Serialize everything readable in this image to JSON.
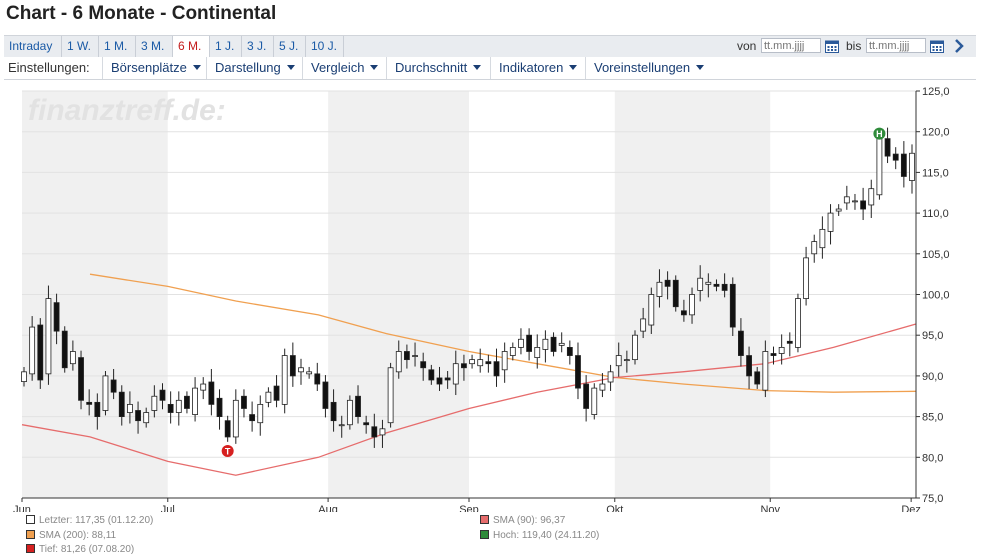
{
  "title": "Chart - 6 Monate - Continental",
  "ranges": [
    "Intraday",
    "1 W.",
    "1 M.",
    "3 M.",
    "6 M.",
    "1 J.",
    "3 J.",
    "5 J.",
    "10 J."
  ],
  "active_range": "6 M.",
  "date_filter": {
    "from_label": "von",
    "to_label": "bis",
    "from_placeholder": "tt.mm.jjjj",
    "to_placeholder": "tt.mm.jjjj"
  },
  "settings": {
    "label": "Einstellungen:",
    "menus": [
      "Börsenplätze",
      "Darstellung",
      "Vergleich",
      "Durchschnitt",
      "Indikatoren",
      "Voreinstellungen"
    ]
  },
  "watermark": "finanztreff.de:",
  "colors": {
    "sma200": "#f0a050",
    "sma90": "#e66c6c",
    "up": "#ffffff",
    "down": "#111111",
    "band": "#f0f0f0",
    "high_marker": "#2e8b3a",
    "low_marker": "#d62020"
  },
  "chart_data": {
    "type": "candlestick",
    "y_axis": {
      "min": 75,
      "max": 125,
      "ticks": [
        "125,0",
        "120,0",
        "115,0",
        "110,0",
        "105,0",
        "100,0",
        "95,0",
        "90,0",
        "85,0",
        "80,0",
        "75,0"
      ],
      "position": "right"
    },
    "x_axis": {
      "start": "2020-06-01",
      "end": "2020-12-02",
      "ticks": [
        {
          "label": "Jun",
          "date": "2020-06-01"
        },
        {
          "label": "Jul",
          "date": "2020-07-01"
        },
        {
          "label": "Aug",
          "date": "2020-08-03"
        },
        {
          "label": "Sep",
          "date": "2020-09-01"
        },
        {
          "label": "Okt",
          "date": "2020-10-01"
        },
        {
          "label": "Nov",
          "date": "2020-11-02"
        },
        {
          "label": "Dez",
          "date": "2020-12-01"
        }
      ]
    },
    "close": [
      90.5,
      96.0,
      89.5,
      99.5,
      95.5,
      91.0,
      93.0,
      87.0,
      86.5,
      85.0,
      90.0,
      88.0,
      85.0,
      86.5,
      84.5,
      85.5,
      87.5,
      87.0,
      85.5,
      87.0,
      86.0,
      88.5,
      89.0,
      86.5,
      85.0,
      82.5,
      87.0,
      86.0,
      84.5,
      86.5,
      88.0,
      87.0,
      92.5,
      90.0,
      91.0,
      90.5,
      89.0,
      86.0,
      84.5,
      84.0,
      87.0,
      85.0,
      84.0,
      82.5,
      83.5,
      91.0,
      93.0,
      92.0,
      92.5,
      91.0,
      89.5,
      89.0,
      89.5,
      91.5,
      91.0,
      92.0,
      92.0,
      91.5,
      90.0,
      93.0,
      93.5,
      94.5,
      93.0,
      93.5,
      94.5,
      93.0,
      94.0,
      92.5,
      88.5,
      86.0,
      88.5,
      89.0,
      90.5,
      92.5,
      92.0,
      95.0,
      97.0,
      100.0,
      101.5,
      101.0,
      98.5,
      97.5,
      100.0,
      102.0,
      101.5,
      101.0,
      100.5,
      96.0,
      92.5,
      90.0,
      89.0,
      93.0,
      92.5,
      93.5,
      94.0,
      99.5,
      104.5,
      106.5,
      108.0,
      110.0,
      110.5,
      112.0,
      111.5,
      110.5,
      113.0,
      119.4,
      117.0,
      116.5,
      114.5,
      117.35
    ],
    "high": 119.4,
    "low": 81.26,
    "sma200": [
      {
        "date": "2020-06-15",
        "v": 102.5
      },
      {
        "date": "2020-07-01",
        "v": 101.0
      },
      {
        "date": "2020-07-15",
        "v": 99.2
      },
      {
        "date": "2020-08-01",
        "v": 97.5
      },
      {
        "date": "2020-08-15",
        "v": 95.2
      },
      {
        "date": "2020-09-01",
        "v": 93.0
      },
      {
        "date": "2020-09-15",
        "v": 91.5
      },
      {
        "date": "2020-10-01",
        "v": 89.8
      },
      {
        "date": "2020-10-15",
        "v": 89.0
      },
      {
        "date": "2020-11-01",
        "v": 88.2
      },
      {
        "date": "2020-11-15",
        "v": 88.0
      },
      {
        "date": "2020-12-02",
        "v": 88.11
      }
    ],
    "sma90": [
      {
        "date": "2020-06-01",
        "v": 84.0
      },
      {
        "date": "2020-06-15",
        "v": 82.5
      },
      {
        "date": "2020-07-01",
        "v": 79.5
      },
      {
        "date": "2020-07-15",
        "v": 77.8
      },
      {
        "date": "2020-08-01",
        "v": 80.0
      },
      {
        "date": "2020-08-15",
        "v": 83.0
      },
      {
        "date": "2020-09-01",
        "v": 86.0
      },
      {
        "date": "2020-09-15",
        "v": 88.0
      },
      {
        "date": "2020-10-01",
        "v": 89.8
      },
      {
        "date": "2020-10-15",
        "v": 90.5
      },
      {
        "date": "2020-11-01",
        "v": 91.5
      },
      {
        "date": "2020-11-15",
        "v": 93.5
      },
      {
        "date": "2020-12-02",
        "v": 96.37
      }
    ],
    "legend": [
      {
        "label": "Letzter: 117,35 (01.12.20)",
        "color": "#ffffff"
      },
      {
        "label": "SMA (90): 96,37",
        "color": "#e66c6c"
      },
      {
        "label": "SMA (200): 88,11",
        "color": "#f0a050"
      },
      {
        "label": "Hoch: 119,40 (24.11.20)",
        "color": "#2e8b3a"
      },
      {
        "label": "Tief: 81,26 (07.08.20)",
        "color": "#d62020"
      }
    ],
    "markers": {
      "high_letter": "H",
      "low_letter": "T"
    }
  }
}
